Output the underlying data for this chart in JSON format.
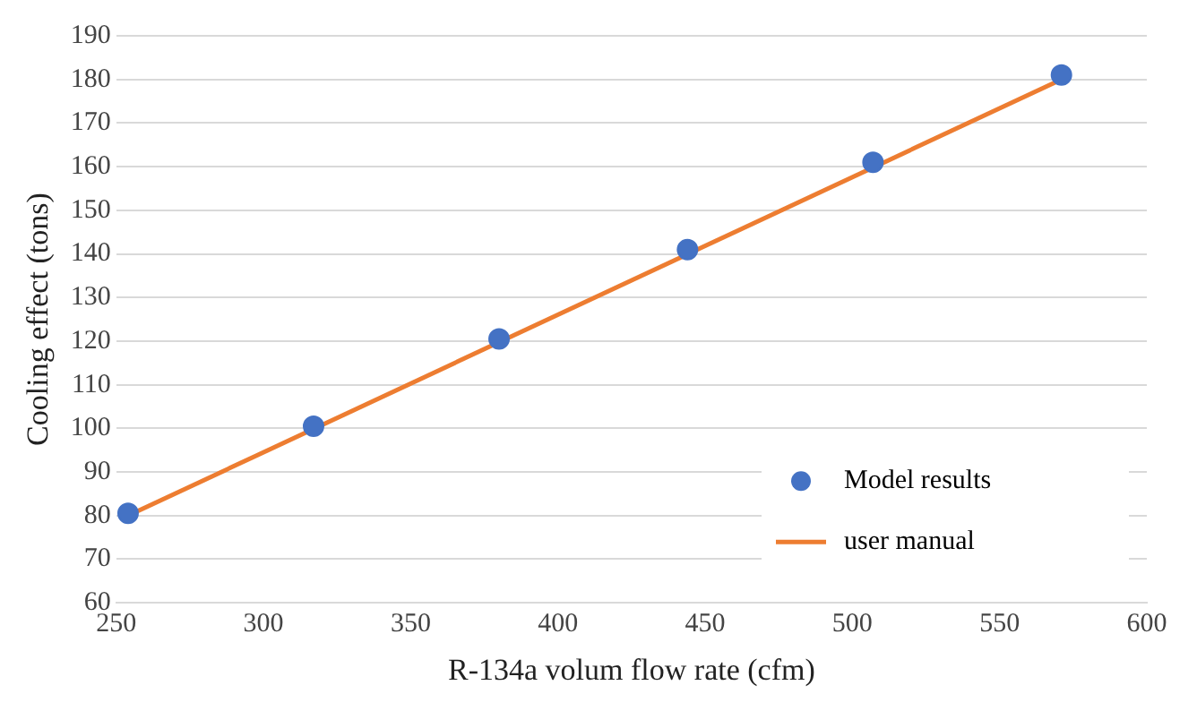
{
  "chart_data": {
    "type": "scatter",
    "xlabel": "R-134a volum flow rate (cfm)",
    "ylabel": "Cooling effect (tons)",
    "xlim": [
      250,
      600
    ],
    "xticks": [
      250,
      300,
      350,
      400,
      450,
      500,
      550,
      600
    ],
    "ylim": [
      60,
      190
    ],
    "yticks": [
      60,
      70,
      80,
      90,
      100,
      110,
      120,
      130,
      140,
      150,
      160,
      170,
      180,
      190
    ],
    "grid": "y",
    "legend": "bottom right",
    "series": [
      {
        "name": "Model results",
        "type": "scatter",
        "color": "#4472c4",
        "marker": "circle",
        "x": [
          254,
          317,
          380,
          444,
          507,
          571
        ],
        "values": [
          80.5,
          100.5,
          120.5,
          141,
          161,
          181
        ]
      },
      {
        "name": "user manual",
        "type": "line",
        "color": "#ed7d31",
        "marker": "none",
        "line_style": "solid",
        "x": [
          254,
          571
        ],
        "values": [
          80,
          180
        ]
      }
    ]
  }
}
